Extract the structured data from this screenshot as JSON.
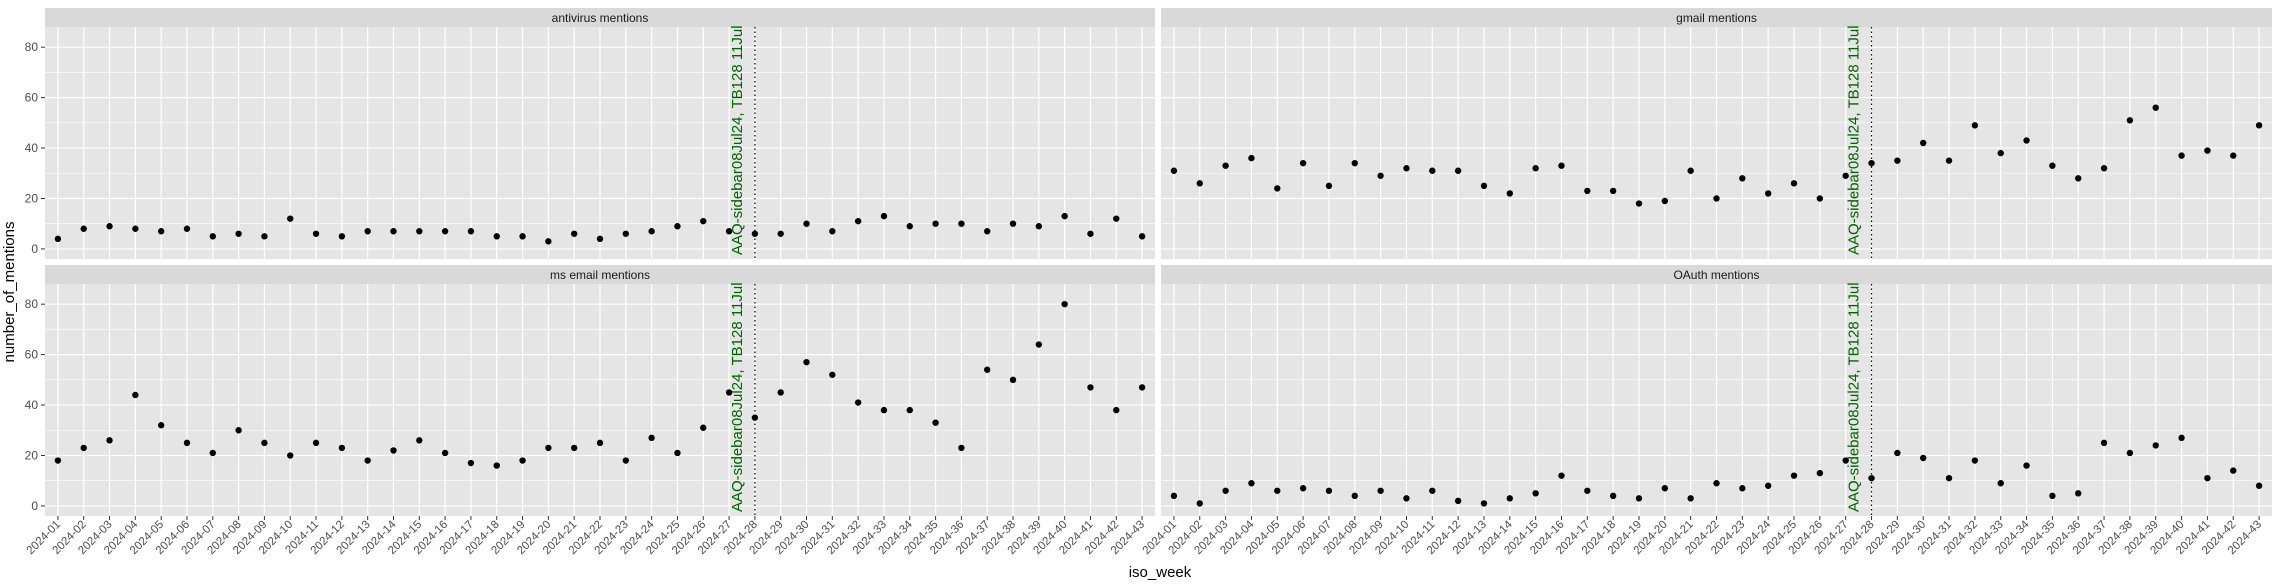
{
  "chart_data": {
    "type": "scatter",
    "xlabel": "iso_week",
    "ylabel": "number_of_mentions",
    "ylim": [
      -4,
      88
    ],
    "yticks": [
      0,
      20,
      40,
      60,
      80
    ],
    "grid": true,
    "layout": "facet grid, 2 rows x 2 columns",
    "x_categories": [
      "2024-01",
      "2024-02",
      "2024-03",
      "2024-04",
      "2024-05",
      "2024-06",
      "2024-07",
      "2024-08",
      "2024-09",
      "2024-10",
      "2024-11",
      "2024-12",
      "2024-13",
      "2024-14",
      "2024-15",
      "2024-16",
      "2024-17",
      "2024-18",
      "2024-19",
      "2024-20",
      "2024-21",
      "2024-22",
      "2024-23",
      "2024-24",
      "2024-25",
      "2024-26",
      "2024-27",
      "2024-28",
      "2024-29",
      "2024-30",
      "2024-31",
      "2024-32",
      "2024-33",
      "2024-34",
      "2024-35",
      "2024-36",
      "2024-37",
      "2024-38",
      "2024-39",
      "2024-40",
      "2024-41",
      "2024-42",
      "2024-43"
    ],
    "vline": {
      "x": "2024-28",
      "label": "AAQ-sidebar08Jul24, TB128 11Jul",
      "color": "#006400",
      "linestyle": "dotted"
    },
    "panels": [
      {
        "title": "antivirus mentions",
        "values": [
          4,
          8,
          9,
          8,
          7,
          8,
          5,
          6,
          5,
          12,
          6,
          5,
          7,
          7,
          7,
          7,
          7,
          5,
          5,
          3,
          6,
          4,
          6,
          7,
          9,
          11,
          7,
          6,
          6,
          10,
          7,
          11,
          13,
          9,
          10,
          10,
          7,
          10,
          9,
          13,
          6,
          12,
          5
        ]
      },
      {
        "title": "gmail mentions",
        "values": [
          31,
          26,
          33,
          36,
          24,
          34,
          25,
          34,
          29,
          32,
          31,
          31,
          25,
          22,
          32,
          33,
          23,
          23,
          18,
          19,
          31,
          20,
          28,
          22,
          26,
          20,
          29,
          34,
          35,
          42,
          35,
          49,
          38,
          43,
          33,
          28,
          32,
          51,
          56,
          37,
          39,
          37,
          49
        ]
      },
      {
        "title": "ms email mentions",
        "values": [
          18,
          23,
          26,
          44,
          32,
          25,
          21,
          30,
          25,
          20,
          25,
          23,
          18,
          22,
          26,
          21,
          17,
          16,
          18,
          23,
          23,
          25,
          18,
          27,
          21,
          31,
          45,
          35,
          45,
          57,
          52,
          41,
          38,
          38,
          33,
          23,
          54,
          50,
          64,
          80,
          47,
          38,
          47
        ]
      },
      {
        "title": "OAuth mentions",
        "values": [
          4,
          1,
          6,
          9,
          6,
          7,
          6,
          4,
          6,
          3,
          6,
          2,
          1,
          3,
          5,
          12,
          6,
          4,
          3,
          7,
          3,
          9,
          7,
          8,
          12,
          13,
          18,
          11,
          21,
          19,
          11,
          18,
          9,
          16,
          4,
          5,
          25,
          21,
          24,
          27,
          11,
          14,
          8
        ]
      }
    ],
    "colors": {
      "panel_bg": "#e5e5e5",
      "strip_bg": "#d9d9d9",
      "grid": "#ffffff",
      "point": "#000000",
      "axis_text": "#4d4d4d"
    }
  }
}
